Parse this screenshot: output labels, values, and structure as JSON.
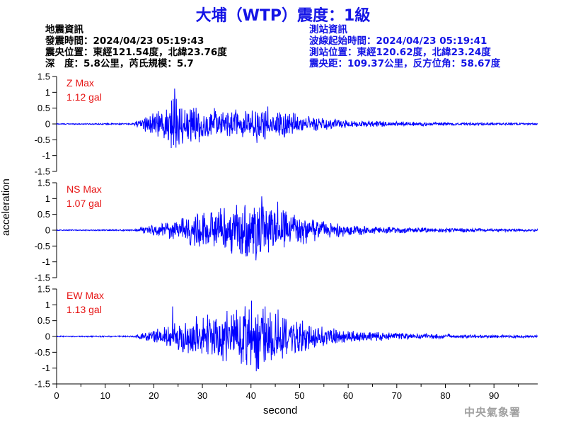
{
  "title": "大埔（WTP）震度：1級",
  "quake_info": {
    "heading": "地震資訊",
    "origin_time": "發震時間：2024/04/23 05:19:43",
    "epicenter": "震央位置：東經121.54度，北緯23.76度",
    "depth_magnitude": "深　度：5.8公里，芮氏規模：5.7"
  },
  "station_info": {
    "heading": "測站資訊",
    "wave_start": "波線起始時間：2024/04/23 05:19:41",
    "location": "測站位置：東經120.62度，北緯23.24度",
    "distance": "震央距：109.37公里，反方位角：58.67度"
  },
  "ylabel": "acceleration",
  "xlabel": "second",
  "agency": "中央氣象署",
  "colors": {
    "title": "#1414e6",
    "trace": "#0000ff",
    "max_label": "#e61414",
    "station_text": "#1414e6"
  },
  "chart_data": [
    {
      "type": "line",
      "component": "Z",
      "max_label": "Z Max",
      "max_value": "1.12 gal",
      "ylim": [
        -1.5,
        1.5
      ],
      "yticks": [
        "1.5",
        "1",
        "0.5",
        "0",
        "-0.5",
        "-1",
        "-1.5"
      ],
      "envelope": {
        "onset": 15.7,
        "x": [
          0,
          15.7,
          18,
          23,
          24.3,
          25,
          27,
          30,
          35,
          40,
          43,
          48,
          50,
          55,
          60,
          65,
          70,
          80,
          90,
          99
        ],
        "amp": [
          0.015,
          0.02,
          0.25,
          0.55,
          1.12,
          0.7,
          0.6,
          0.55,
          0.45,
          0.55,
          0.55,
          0.4,
          0.3,
          0.2,
          0.12,
          0.1,
          0.08,
          0.05,
          0.04,
          0.03
        ]
      },
      "peaks": [
        [
          24.3,
          1.12
        ],
        [
          24.6,
          -0.75
        ],
        [
          43.5,
          0.55
        ],
        [
          41.2,
          -0.6
        ],
        [
          32.5,
          0.5
        ],
        [
          29.3,
          -0.58
        ]
      ]
    },
    {
      "type": "line",
      "component": "NS",
      "max_label": "NS Max",
      "max_value": "1.07 gal",
      "ylim": [
        -1.5,
        1.5
      ],
      "yticks": [
        "1.5",
        "1",
        "0.5",
        "0",
        "-0.5",
        "-1",
        "-1.5"
      ],
      "envelope": {
        "onset": 15.7,
        "x": [
          0,
          15.7,
          18,
          22,
          25,
          30,
          35,
          40,
          42,
          45,
          48,
          52,
          55,
          60,
          65,
          70,
          80,
          90,
          99
        ],
        "amp": [
          0.015,
          0.02,
          0.12,
          0.25,
          0.4,
          0.6,
          0.75,
          0.9,
          1.0,
          0.8,
          0.6,
          0.45,
          0.3,
          0.2,
          0.12,
          0.1,
          0.08,
          0.05,
          0.04
        ]
      },
      "peaks": [
        [
          42.2,
          1.07
        ],
        [
          41.0,
          -0.95
        ],
        [
          45.5,
          0.9
        ],
        [
          37.0,
          0.8
        ],
        [
          39.2,
          -0.82
        ],
        [
          34.5,
          0.7
        ]
      ]
    },
    {
      "type": "line",
      "component": "EW",
      "max_label": "EW Max",
      "max_value": "1.13 gal",
      "ylim": [
        -1.5,
        1.5
      ],
      "yticks": [
        "1.5",
        "1",
        "0.5",
        "0",
        "-0.5",
        "-1",
        "-1.5"
      ],
      "envelope": {
        "onset": 15.7,
        "x": [
          0,
          15.7,
          18,
          22,
          25,
          30,
          35,
          40,
          42,
          45,
          48,
          52,
          55,
          60,
          65,
          70,
          80,
          90,
          99
        ],
        "amp": [
          0.015,
          0.02,
          0.15,
          0.3,
          0.5,
          0.7,
          0.85,
          1.0,
          1.05,
          0.85,
          0.65,
          0.45,
          0.3,
          0.2,
          0.15,
          0.12,
          0.08,
          0.05,
          0.04
        ]
      },
      "peaks": [
        [
          40.1,
          1.13
        ],
        [
          41.1,
          -1.1
        ],
        [
          42.9,
          0.95
        ],
        [
          23.9,
          0.95
        ],
        [
          39.1,
          -0.9
        ],
        [
          45.6,
          0.85
        ]
      ]
    }
  ],
  "xaxis": {
    "xlim": [
      0,
      99
    ],
    "ticks": [
      "0",
      "10",
      "20",
      "30",
      "40",
      "50",
      "60",
      "70",
      "80",
      "90"
    ]
  }
}
